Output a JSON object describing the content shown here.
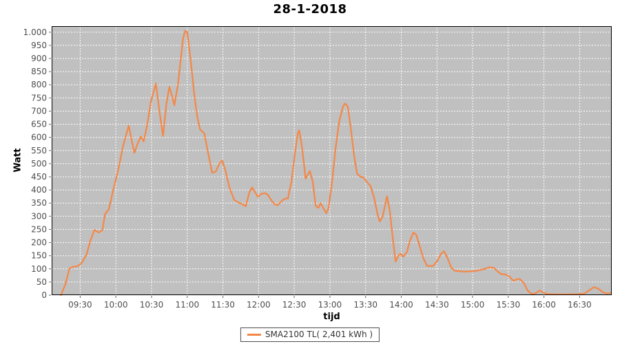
{
  "title": "28-1-2018",
  "chart_data": {
    "type": "line",
    "title": "28-1-2018",
    "xlabel": "tijd",
    "ylabel": "Watt",
    "x_range": [
      9.1,
      16.95
    ],
    "y_range": [
      0,
      1023
    ],
    "grid": "on",
    "legend_position": "bottom-center",
    "colors": {
      "plot_bg": "#C0C0C0",
      "grid": "#FFFFFF",
      "border": "#000000",
      "tick": "#666666",
      "tick_label": "#4d4d4d",
      "series": "#F58746"
    },
    "x_ticks": [
      {
        "v": 9.5,
        "label": "09:30"
      },
      {
        "v": 10.0,
        "label": "10:00"
      },
      {
        "v": 10.5,
        "label": "10:30"
      },
      {
        "v": 11.0,
        "label": "11:00"
      },
      {
        "v": 11.5,
        "label": "11:30"
      },
      {
        "v": 12.0,
        "label": "12:00"
      },
      {
        "v": 12.5,
        "label": "12:30"
      },
      {
        "v": 13.0,
        "label": "13:00"
      },
      {
        "v": 13.5,
        "label": "13:30"
      },
      {
        "v": 14.0,
        "label": "14:00"
      },
      {
        "v": 14.5,
        "label": "14:30"
      },
      {
        "v": 15.0,
        "label": "15:00"
      },
      {
        "v": 15.5,
        "label": "15:30"
      },
      {
        "v": 16.0,
        "label": "16:00"
      },
      {
        "v": 16.5,
        "label": "16:30"
      }
    ],
    "y_ticks": [
      {
        "v": 0,
        "label": "0"
      },
      {
        "v": 50,
        "label": "50"
      },
      {
        "v": 100,
        "label": "100"
      },
      {
        "v": 150,
        "label": "150"
      },
      {
        "v": 200,
        "label": "200"
      },
      {
        "v": 250,
        "label": "250"
      },
      {
        "v": 300,
        "label": "300"
      },
      {
        "v": 350,
        "label": "350"
      },
      {
        "v": 400,
        "label": "400"
      },
      {
        "v": 450,
        "label": "450"
      },
      {
        "v": 500,
        "label": "500"
      },
      {
        "v": 550,
        "label": "550"
      },
      {
        "v": 600,
        "label": "600"
      },
      {
        "v": 650,
        "label": "650"
      },
      {
        "v": 700,
        "label": "700"
      },
      {
        "v": 750,
        "label": "750"
      },
      {
        "v": 800,
        "label": "800"
      },
      {
        "v": 850,
        "label": "850"
      },
      {
        "v": 900,
        "label": "900"
      },
      {
        "v": 950,
        "label": "950"
      },
      {
        "v": 1000,
        "label": "1.000"
      }
    ],
    "legend": {
      "entries": [
        {
          "label": "SMA2100 TL( 2,401 kWh )",
          "color": "#F58746"
        }
      ]
    },
    "series": [
      {
        "name": "SMA2100 TL( 2,401 kWh )",
        "color": "#F58746",
        "points": [
          [
            9.23,
            0
          ],
          [
            9.29,
            40
          ],
          [
            9.35,
            101
          ],
          [
            9.4,
            108
          ],
          [
            9.46,
            110
          ],
          [
            9.52,
            122
          ],
          [
            9.59,
            155
          ],
          [
            9.64,
            205
          ],
          [
            9.7,
            248
          ],
          [
            9.76,
            238
          ],
          [
            9.81,
            247
          ],
          [
            9.85,
            310
          ],
          [
            9.9,
            326
          ],
          [
            9.97,
            408
          ],
          [
            10.04,
            486
          ],
          [
            10.1,
            567
          ],
          [
            10.18,
            645
          ],
          [
            10.22,
            590
          ],
          [
            10.26,
            541
          ],
          [
            10.31,
            580
          ],
          [
            10.35,
            603
          ],
          [
            10.39,
            585
          ],
          [
            10.44,
            650
          ],
          [
            10.49,
            735
          ],
          [
            10.56,
            805
          ],
          [
            10.61,
            700
          ],
          [
            10.66,
            605
          ],
          [
            10.71,
            730
          ],
          [
            10.75,
            792
          ],
          [
            10.79,
            755
          ],
          [
            10.82,
            722
          ],
          [
            10.87,
            800
          ],
          [
            10.91,
            900
          ],
          [
            10.94,
            975
          ],
          [
            10.97,
            1005
          ],
          [
            11.0,
            1000
          ],
          [
            11.02,
            960
          ],
          [
            11.06,
            865
          ],
          [
            11.1,
            760
          ],
          [
            11.14,
            680
          ],
          [
            11.18,
            630
          ],
          [
            11.24,
            615
          ],
          [
            11.29,
            545
          ],
          [
            11.35,
            465
          ],
          [
            11.4,
            470
          ],
          [
            11.45,
            500
          ],
          [
            11.49,
            512
          ],
          [
            11.54,
            470
          ],
          [
            11.59,
            410
          ],
          [
            11.66,
            362
          ],
          [
            11.72,
            352
          ],
          [
            11.78,
            345
          ],
          [
            11.82,
            338
          ],
          [
            11.87,
            390
          ],
          [
            11.91,
            410
          ],
          [
            11.95,
            392
          ],
          [
            11.99,
            374
          ],
          [
            12.04,
            385
          ],
          [
            12.09,
            388
          ],
          [
            12.13,
            382
          ],
          [
            12.18,
            360
          ],
          [
            12.23,
            345
          ],
          [
            12.27,
            342
          ],
          [
            12.33,
            360
          ],
          [
            12.38,
            368
          ],
          [
            12.41,
            367
          ],
          [
            12.46,
            430
          ],
          [
            12.51,
            540
          ],
          [
            12.55,
            615
          ],
          [
            12.57,
            627
          ],
          [
            12.61,
            560
          ],
          [
            12.66,
            443
          ],
          [
            12.69,
            458
          ],
          [
            12.72,
            472
          ],
          [
            12.76,
            430
          ],
          [
            12.8,
            340
          ],
          [
            12.84,
            332
          ],
          [
            12.87,
            350
          ],
          [
            12.91,
            330
          ],
          [
            12.95,
            312
          ],
          [
            12.98,
            330
          ],
          [
            13.03,
            430
          ],
          [
            13.08,
            560
          ],
          [
            13.13,
            660
          ],
          [
            13.18,
            715
          ],
          [
            13.21,
            729
          ],
          [
            13.25,
            718
          ],
          [
            13.29,
            640
          ],
          [
            13.34,
            530
          ],
          [
            13.38,
            462
          ],
          [
            13.43,
            450
          ],
          [
            13.47,
            448
          ],
          [
            13.52,
            430
          ],
          [
            13.57,
            415
          ],
          [
            13.62,
            370
          ],
          [
            13.67,
            305
          ],
          [
            13.7,
            280
          ],
          [
            13.74,
            300
          ],
          [
            13.78,
            350
          ],
          [
            13.8,
            376
          ],
          [
            13.84,
            320
          ],
          [
            13.88,
            220
          ],
          [
            13.92,
            128
          ],
          [
            13.96,
            150
          ],
          [
            13.99,
            158
          ],
          [
            14.03,
            146
          ],
          [
            14.08,
            165
          ],
          [
            14.12,
            205
          ],
          [
            14.17,
            238
          ],
          [
            14.21,
            230
          ],
          [
            14.26,
            185
          ],
          [
            14.31,
            140
          ],
          [
            14.36,
            112
          ],
          [
            14.44,
            110
          ],
          [
            14.5,
            128
          ],
          [
            14.56,
            158
          ],
          [
            14.6,
            167
          ],
          [
            14.65,
            140
          ],
          [
            14.7,
            105
          ],
          [
            14.75,
            93
          ],
          [
            14.85,
            90
          ],
          [
            14.94,
            90
          ],
          [
            15.04,
            92
          ],
          [
            15.11,
            96
          ],
          [
            15.17,
            100
          ],
          [
            15.23,
            106
          ],
          [
            15.3,
            104
          ],
          [
            15.35,
            90
          ],
          [
            15.4,
            80
          ],
          [
            15.46,
            79
          ],
          [
            15.52,
            70
          ],
          [
            15.57,
            55
          ],
          [
            15.62,
            60
          ],
          [
            15.66,
            62
          ],
          [
            15.72,
            45
          ],
          [
            15.77,
            18
          ],
          [
            15.83,
            4
          ],
          [
            15.89,
            8
          ],
          [
            15.94,
            18
          ],
          [
            15.99,
            10
          ],
          [
            16.05,
            4
          ],
          [
            16.2,
            3
          ],
          [
            16.34,
            3
          ],
          [
            16.49,
            4
          ],
          [
            16.57,
            6
          ],
          [
            16.63,
            18
          ],
          [
            16.7,
            30
          ],
          [
            16.76,
            25
          ],
          [
            16.82,
            12
          ],
          [
            16.88,
            6
          ],
          [
            16.93,
            8
          ]
        ]
      }
    ]
  }
}
